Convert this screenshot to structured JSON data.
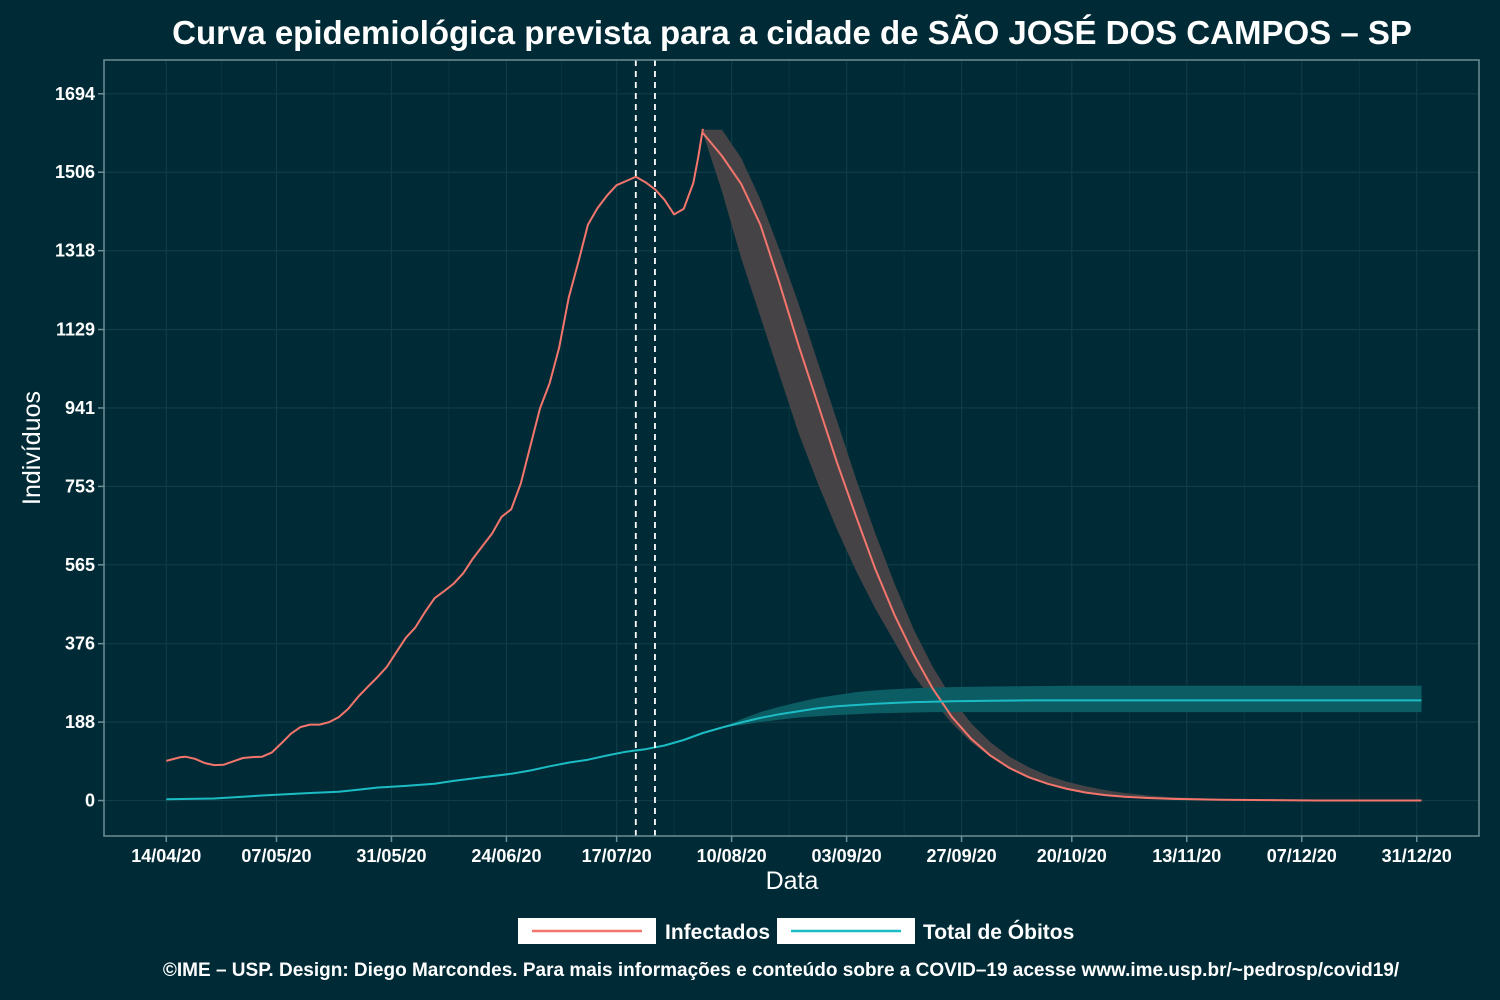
{
  "chart_data": {
    "type": "line",
    "title": "Curva epidemiológica prevista para a cidade de SÃO JOSÉ DOS CAMPOS – SP",
    "xlabel": "Data",
    "ylabel": "Indivíduos",
    "y_ticks": [
      0,
      188,
      376,
      565,
      753,
      941,
      1129,
      1318,
      1506,
      1694
    ],
    "ylim": [
      -85,
      1775
    ],
    "x_ticks": [
      "14/04/20",
      "07/05/20",
      "31/05/20",
      "24/06/20",
      "17/07/20",
      "10/08/20",
      "03/09/20",
      "27/09/20",
      "20/10/20",
      "13/11/20",
      "07/12/20",
      "31/12/20"
    ],
    "x_tick_days": [
      0,
      23,
      47,
      71,
      94,
      118,
      142,
      166,
      189,
      213,
      237,
      261
    ],
    "xlim_days": [
      -13,
      274
    ],
    "grid": true,
    "legend_position": "bottom",
    "vlines_days": [
      98,
      102
    ],
    "colors": {
      "background": "#002b36",
      "text": "#ffffff",
      "grid": "#0f3c46",
      "axis": "#6f8f96",
      "infectados": "#f4756c",
      "obitos": "#1cbcc4",
      "band_infectados": "#4a4448",
      "band_obitos": "#0d5f66"
    },
    "series": [
      {
        "name": "Infectados",
        "color": "#f4756c",
        "observed": [
          [
            0,
            95
          ],
          [
            3,
            104
          ],
          [
            4,
            105
          ],
          [
            6,
            100
          ],
          [
            8,
            90
          ],
          [
            10,
            85
          ],
          [
            12,
            86
          ],
          [
            14,
            94
          ],
          [
            16,
            102
          ],
          [
            18,
            104
          ],
          [
            20,
            105
          ],
          [
            22,
            115
          ],
          [
            24,
            137
          ],
          [
            26,
            160
          ],
          [
            28,
            176
          ],
          [
            30,
            182
          ],
          [
            32,
            182
          ],
          [
            34,
            188
          ],
          [
            36,
            200
          ],
          [
            38,
            220
          ],
          [
            40,
            248
          ],
          [
            42,
            272
          ],
          [
            44,
            295
          ],
          [
            46,
            320
          ],
          [
            48,
            355
          ],
          [
            50,
            390
          ],
          [
            52,
            415
          ],
          [
            54,
            452
          ],
          [
            56,
            485
          ],
          [
            58,
            502
          ],
          [
            60,
            520
          ],
          [
            62,
            545
          ],
          [
            64,
            580
          ],
          [
            66,
            610
          ],
          [
            68,
            640
          ],
          [
            70,
            680
          ],
          [
            72,
            698
          ],
          [
            74,
            760
          ],
          [
            76,
            850
          ],
          [
            78,
            940
          ],
          [
            80,
            1000
          ],
          [
            82,
            1085
          ],
          [
            84,
            1205
          ],
          [
            86,
            1290
          ],
          [
            88,
            1380
          ],
          [
            90,
            1420
          ],
          [
            92,
            1450
          ],
          [
            94,
            1475
          ],
          [
            96,
            1485
          ],
          [
            98,
            1495
          ],
          [
            100,
            1482
          ],
          [
            102,
            1465
          ],
          [
            104,
            1440
          ],
          [
            106,
            1405
          ],
          [
            108,
            1418
          ],
          [
            110,
            1480
          ],
          [
            111,
            1540
          ],
          [
            112,
            1610
          ]
        ],
        "forecast": [
          [
            112,
            1600
          ],
          [
            116,
            1545
          ],
          [
            120,
            1478
          ],
          [
            124,
            1380
          ],
          [
            128,
            1240
          ],
          [
            132,
            1090
          ],
          [
            136,
            950
          ],
          [
            140,
            810
          ],
          [
            144,
            680
          ],
          [
            148,
            555
          ],
          [
            152,
            445
          ],
          [
            156,
            350
          ],
          [
            160,
            268
          ],
          [
            164,
            200
          ],
          [
            168,
            148
          ],
          [
            172,
            108
          ],
          [
            176,
            78
          ],
          [
            180,
            56
          ],
          [
            184,
            40
          ],
          [
            188,
            28
          ],
          [
            192,
            19
          ],
          [
            196,
            13
          ],
          [
            200,
            9
          ],
          [
            205,
            6
          ],
          [
            210,
            4
          ],
          [
            220,
            2
          ],
          [
            230,
            1
          ],
          [
            240,
            0
          ],
          [
            262,
            0
          ]
        ],
        "band_lower": [
          [
            112,
            1600
          ],
          [
            116,
            1460
          ],
          [
            120,
            1300
          ],
          [
            124,
            1160
          ],
          [
            128,
            1020
          ],
          [
            132,
            880
          ],
          [
            136,
            760
          ],
          [
            140,
            650
          ],
          [
            144,
            550
          ],
          [
            148,
            460
          ],
          [
            152,
            380
          ],
          [
            156,
            300
          ],
          [
            160,
            240
          ],
          [
            164,
            185
          ],
          [
            168,
            140
          ],
          [
            172,
            105
          ],
          [
            176,
            78
          ],
          [
            180,
            56
          ],
          [
            184,
            40
          ],
          [
            188,
            28
          ],
          [
            192,
            19
          ],
          [
            196,
            13
          ],
          [
            200,
            9
          ],
          [
            205,
            6
          ],
          [
            210,
            4
          ],
          [
            220,
            2
          ],
          [
            230,
            1
          ],
          [
            240,
            0
          ],
          [
            262,
            0
          ]
        ],
        "band_upper": [
          [
            112,
            1608
          ],
          [
            116,
            1608
          ],
          [
            120,
            1540
          ],
          [
            124,
            1440
          ],
          [
            128,
            1320
          ],
          [
            132,
            1190
          ],
          [
            136,
            1050
          ],
          [
            140,
            910
          ],
          [
            144,
            770
          ],
          [
            148,
            640
          ],
          [
            152,
            520
          ],
          [
            156,
            410
          ],
          [
            160,
            320
          ],
          [
            164,
            245
          ],
          [
            168,
            185
          ],
          [
            172,
            140
          ],
          [
            176,
            105
          ],
          [
            180,
            80
          ],
          [
            184,
            60
          ],
          [
            188,
            45
          ],
          [
            192,
            34
          ],
          [
            196,
            25
          ],
          [
            200,
            18
          ],
          [
            205,
            12
          ],
          [
            210,
            8
          ],
          [
            220,
            4
          ],
          [
            230,
            2
          ],
          [
            240,
            1
          ],
          [
            262,
            0
          ]
        ]
      },
      {
        "name": "Total de Óbitos",
        "color": "#1cbcc4",
        "observed": [
          [
            0,
            3
          ],
          [
            10,
            5
          ],
          [
            20,
            12
          ],
          [
            30,
            18
          ],
          [
            36,
            21
          ],
          [
            40,
            26
          ],
          [
            44,
            31
          ],
          [
            50,
            35
          ],
          [
            56,
            40
          ],
          [
            60,
            47
          ],
          [
            66,
            56
          ],
          [
            72,
            64
          ],
          [
            76,
            72
          ],
          [
            80,
            82
          ],
          [
            84,
            91
          ],
          [
            88,
            98
          ],
          [
            92,
            108
          ],
          [
            96,
            117
          ],
          [
            100,
            123
          ],
          [
            104,
            132
          ],
          [
            108,
            145
          ],
          [
            112,
            162
          ],
          [
            116,
            175
          ]
        ],
        "forecast": [
          [
            116,
            175
          ],
          [
            120,
            187
          ],
          [
            124,
            198
          ],
          [
            128,
            207
          ],
          [
            132,
            214
          ],
          [
            136,
            221
          ],
          [
            140,
            226
          ],
          [
            144,
            229
          ],
          [
            148,
            232
          ],
          [
            152,
            234
          ],
          [
            156,
            236
          ],
          [
            160,
            237
          ],
          [
            164,
            238
          ],
          [
            172,
            239
          ],
          [
            180,
            240
          ],
          [
            200,
            240
          ],
          [
            262,
            240
          ]
        ],
        "band_lower": [
          [
            116,
            175
          ],
          [
            120,
            181
          ],
          [
            124,
            188
          ],
          [
            128,
            194
          ],
          [
            132,
            199
          ],
          [
            136,
            202
          ],
          [
            140,
            205
          ],
          [
            144,
            207
          ],
          [
            148,
            209
          ],
          [
            152,
            210
          ],
          [
            156,
            211
          ],
          [
            160,
            212
          ],
          [
            170,
            212
          ],
          [
            262,
            212
          ]
        ],
        "band_upper": [
          [
            116,
            175
          ],
          [
            120,
            195
          ],
          [
            124,
            212
          ],
          [
            128,
            225
          ],
          [
            132,
            236
          ],
          [
            136,
            246
          ],
          [
            140,
            253
          ],
          [
            144,
            260
          ],
          [
            148,
            264
          ],
          [
            152,
            267
          ],
          [
            156,
            269
          ],
          [
            160,
            271
          ],
          [
            170,
            273
          ],
          [
            190,
            275
          ],
          [
            262,
            275
          ]
        ]
      }
    ],
    "credit": "©IME – USP. Design: Diego Marcondes. Para mais informações e conteúdo sobre a COVID–19 acesse www.ime.usp.br/~pedrosp/covid19/"
  }
}
